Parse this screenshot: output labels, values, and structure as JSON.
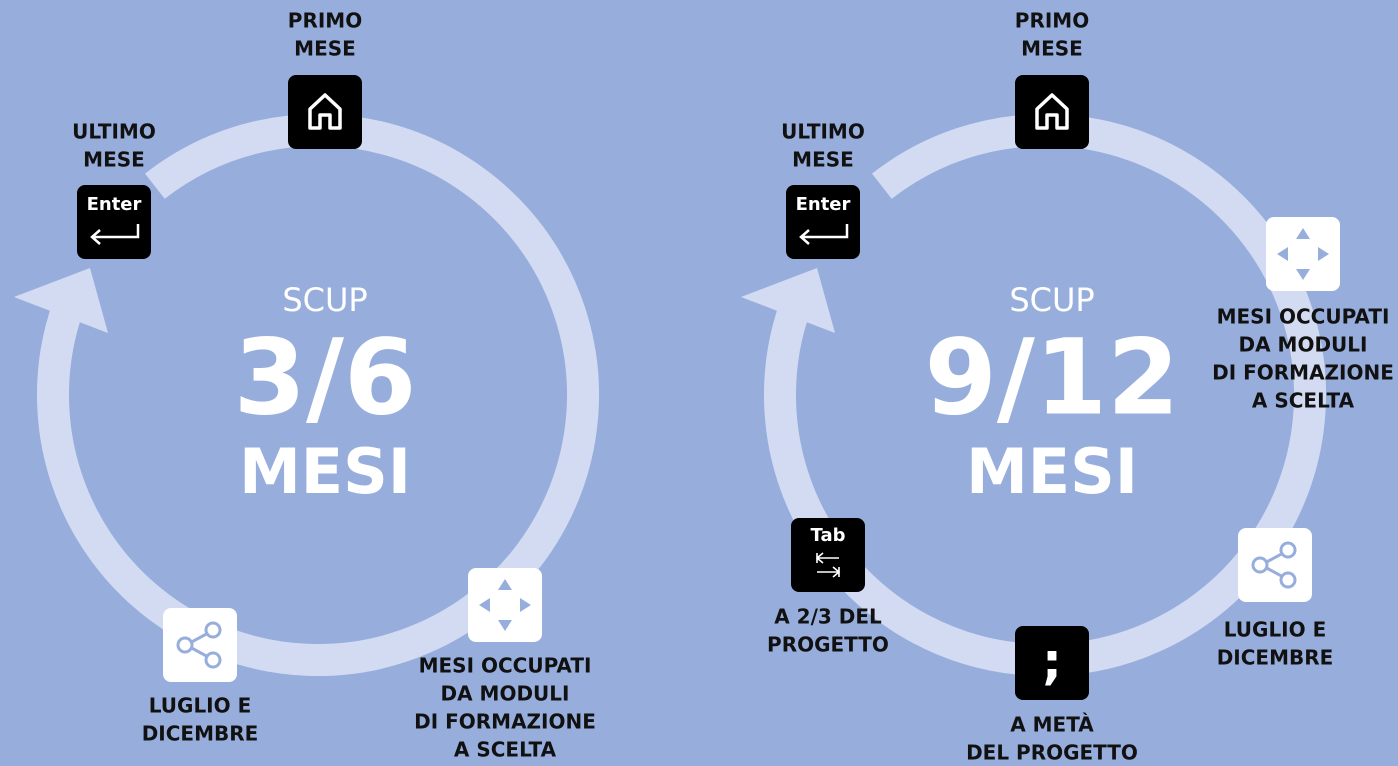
{
  "diagrams": [
    {
      "center": {
        "title": "SCUP",
        "duration": "3/6",
        "unit": "MESI"
      },
      "nodes": [
        {
          "label": [
            "PRIMO",
            "MESE"
          ]
        },
        {
          "key": "Enter",
          "label": [
            "ULTIMO",
            "MESE"
          ]
        },
        {
          "label": [
            "MESI OCCUPATI",
            "DA MODULI",
            "DI FORMAZIONE",
            "A SCELTA"
          ]
        },
        {
          "label": [
            "LUGLIO E",
            "DICEMBRE"
          ]
        }
      ]
    },
    {
      "center": {
        "title": "SCUP",
        "duration": "9/12",
        "unit": "MESI"
      },
      "nodes": [
        {
          "label": [
            "PRIMO",
            "MESE"
          ]
        },
        {
          "key": "Enter",
          "label": [
            "ULTIMO",
            "MESE"
          ]
        },
        {
          "label": [
            "MESI OCCUPATI",
            "DA MODULI",
            "DI FORMAZIONE",
            "A SCELTA"
          ]
        },
        {
          "label": [
            "LUGLIO E",
            "DICEMBRE"
          ]
        },
        {
          "key": ";",
          "label": [
            "A METÀ",
            "DEL PROGETTO"
          ]
        },
        {
          "key": "Tab",
          "label": [
            "A 2/3 DEL",
            "PROGETTO"
          ]
        }
      ]
    }
  ]
}
